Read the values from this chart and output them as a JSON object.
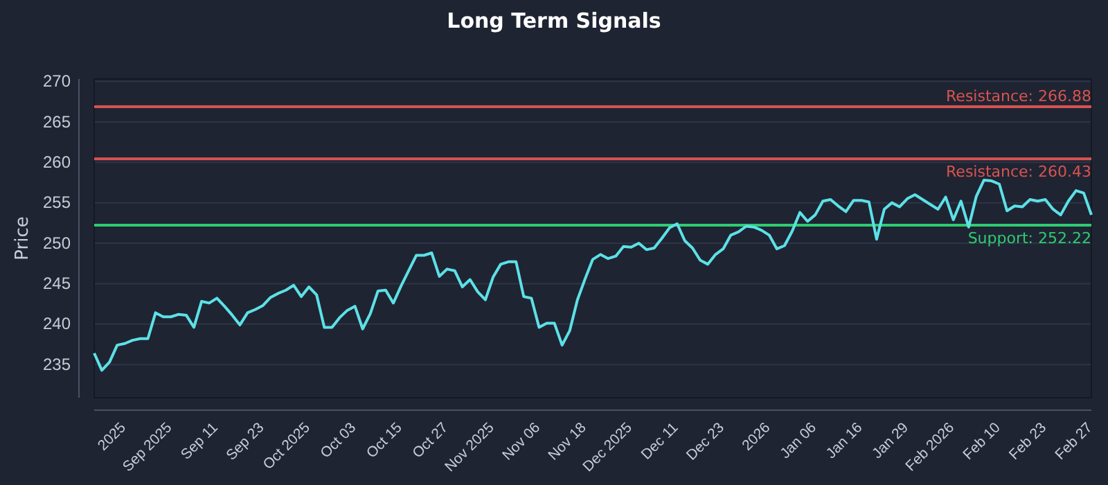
{
  "chart_data": {
    "type": "line",
    "title": "Long Term Signals",
    "ylabel": "Price",
    "categories": [
      null,
      null,
      null,
      null,
      "2025",
      null,
      null,
      null,
      null,
      null,
      "Sep 2025",
      null,
      null,
      null,
      null,
      null,
      "Sep 11",
      null,
      null,
      null,
      null,
      null,
      "Sep 23",
      null,
      null,
      null,
      null,
      null,
      "Oct 2025",
      null,
      null,
      null,
      null,
      null,
      "Oct 03",
      null,
      null,
      null,
      null,
      null,
      "Oct 15",
      null,
      null,
      null,
      null,
      null,
      "Oct 27",
      null,
      null,
      null,
      null,
      null,
      "Nov 2025",
      null,
      null,
      null,
      null,
      null,
      "Nov 06",
      null,
      null,
      null,
      null,
      null,
      "Nov 18",
      null,
      null,
      null,
      null,
      null,
      "Dec 2025",
      null,
      null,
      null,
      null,
      null,
      "Dec 11",
      null,
      null,
      null,
      null,
      null,
      "Dec 23",
      null,
      null,
      null,
      null,
      null,
      "2026",
      null,
      null,
      null,
      null,
      null,
      "Jan 06",
      null,
      null,
      null,
      null,
      null,
      "Jan 16",
      null,
      null,
      null,
      null,
      null,
      "Jan 29",
      null,
      null,
      null,
      null,
      null,
      "Feb 2026",
      null,
      null,
      null,
      null,
      null,
      "Feb 10",
      null,
      null,
      null,
      null,
      null,
      "Feb 23",
      null,
      null,
      null,
      null,
      null,
      "Feb 27"
    ],
    "series": [
      {
        "color": "#5ce1e6",
        "values": [
          236.4,
          234.3,
          235.3,
          237.4,
          237.6,
          238.0,
          238.2,
          238.2,
          241.4,
          240.9,
          240.9,
          241.2,
          241.1,
          239.6,
          242.8,
          242.6,
          243.2,
          242.2,
          241.1,
          239.9,
          241.4,
          241.8,
          242.3,
          243.3,
          243.8,
          244.2,
          244.8,
          243.4,
          244.6,
          243.6,
          239.6,
          239.6,
          240.8,
          241.7,
          242.2,
          239.4,
          241.3,
          244.1,
          244.2,
          242.6,
          244.7,
          246.6,
          248.5,
          248.5,
          248.8,
          245.9,
          246.8,
          246.6,
          244.6,
          245.5,
          244.0,
          243.0,
          245.8,
          247.4,
          247.7,
          247.7,
          243.4,
          243.2,
          239.6,
          240.1,
          240.1,
          237.4,
          239.2,
          243.0,
          245.6,
          248.0,
          248.6,
          248.1,
          248.4,
          249.6,
          249.5,
          250.0,
          249.2,
          249.4,
          250.6,
          251.9,
          252.4,
          250.3,
          249.4,
          247.9,
          247.4,
          248.6,
          249.3,
          251.0,
          251.4,
          252.1,
          252.0,
          251.6,
          251.0,
          249.3,
          249.7,
          251.5,
          253.8,
          252.7,
          253.5,
          255.2,
          255.4,
          254.6,
          253.9,
          255.3,
          255.3,
          255.1,
          250.5,
          254.2,
          255.0,
          254.5,
          255.5,
          256.0,
          255.4,
          254.8,
          254.2,
          255.7,
          252.9,
          255.2,
          252.0,
          255.8,
          257.8,
          257.7,
          257.3,
          254.0,
          254.6,
          254.5,
          255.4,
          255.2,
          255.4,
          254.2,
          253.5,
          255.2,
          256.5,
          256.2,
          253.5
        ]
      }
    ],
    "ylim": [
      230.9,
      270.3
    ],
    "yticks": [
      235,
      240,
      245,
      250,
      255,
      260,
      265,
      270
    ],
    "grid": "y",
    "ref_lines": [
      {
        "axis": "y",
        "value": 266.88,
        "label": "Resistance: 266.88",
        "color": "#d9534f"
      },
      {
        "axis": "y",
        "value": 260.43,
        "label": "Resistance: 260.43",
        "color": "#d9534f"
      },
      {
        "axis": "y",
        "value": 252.22,
        "label": "Support: 252.22",
        "color": "#2ecc71"
      }
    ]
  }
}
